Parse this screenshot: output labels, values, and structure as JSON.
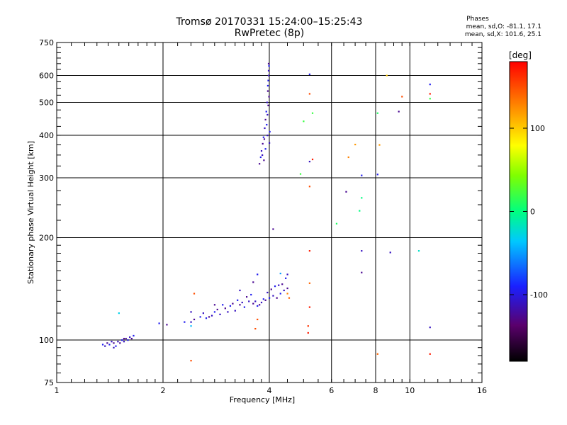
{
  "chart_data": {
    "type": "scatter",
    "title": "Tromsø 20170331 15:24:00–15:25:43",
    "subtitle": "RwPretec (8p)",
    "xlabel": "Frequency [MHz]",
    "ylabel": "Stationary phase Virtual Height [km]",
    "x_scale": "log",
    "y_scale": "log",
    "xlim": [
      1,
      16
    ],
    "ylim": [
      75,
      750
    ],
    "x_ticks": [
      "1",
      "2",
      "4",
      "6",
      "8",
      "10",
      "16"
    ],
    "y_ticks": [
      "75",
      "100",
      "200",
      "300",
      "400",
      "500",
      "600",
      "750"
    ],
    "grid": true,
    "colorbar": {
      "label": "[deg]",
      "range": [
        -180,
        180
      ],
      "ticks": [
        "100",
        "0",
        "-100"
      ]
    },
    "phases": {
      "heading": "Phases",
      "line_o": "mean, sd,O: -81.1, 17.1",
      "line_x": "mean, sd,X: 101.6, 25.1"
    },
    "series": [
      {
        "points": [
          [
            1.35,
            97
          ],
          [
            1.37,
            96
          ],
          [
            1.39,
            98
          ],
          [
            1.41,
            97
          ],
          [
            1.43,
            99
          ],
          [
            1.45,
            98
          ],
          [
            1.47,
            96
          ],
          [
            1.49,
            99
          ],
          [
            1.51,
            98
          ],
          [
            1.53,
            100
          ],
          [
            1.55,
            99
          ],
          [
            1.57,
            101
          ],
          [
            1.59,
            100
          ],
          [
            1.61,
            102
          ],
          [
            1.63,
            101
          ],
          [
            1.65,
            103
          ],
          [
            1.45,
            95
          ],
          [
            1.55,
            101
          ],
          [
            2.3,
            113
          ],
          [
            2.4,
            113
          ],
          [
            2.45,
            115
          ],
          [
            2.55,
            117
          ],
          [
            2.6,
            120
          ],
          [
            2.7,
            117
          ],
          [
            2.8,
            121
          ],
          [
            2.9,
            119
          ],
          [
            3.0,
            124
          ],
          [
            3.1,
            126
          ],
          [
            3.2,
            122
          ],
          [
            3.3,
            127
          ],
          [
            3.4,
            125
          ],
          [
            3.5,
            130
          ],
          [
            3.6,
            128
          ],
          [
            3.7,
            126
          ],
          [
            3.8,
            129
          ],
          [
            3.9,
            131
          ],
          [
            4.0,
            133
          ],
          [
            4.1,
            135
          ],
          [
            4.2,
            133
          ],
          [
            4.3,
            137
          ],
          [
            4.4,
            140
          ],
          [
            4.5,
            142
          ],
          [
            2.65,
            116
          ],
          [
            2.75,
            118
          ],
          [
            2.85,
            123
          ],
          [
            2.95,
            127
          ],
          [
            3.05,
            121
          ],
          [
            3.15,
            128
          ],
          [
            3.25,
            131
          ],
          [
            3.35,
            129
          ],
          [
            3.45,
            134
          ],
          [
            3.55,
            136
          ],
          [
            3.65,
            130
          ],
          [
            3.75,
            127
          ],
          [
            3.85,
            132
          ],
          [
            3.95,
            138
          ],
          [
            4.05,
            141
          ],
          [
            4.15,
            144
          ],
          [
            4.25,
            145
          ],
          [
            4.35,
            146
          ],
          [
            4.45,
            152
          ],
          [
            4.5,
            156
          ],
          [
            3.6,
            148
          ],
          [
            3.7,
            156
          ],
          [
            3.3,
            140
          ],
          [
            3.75,
            330
          ],
          [
            3.78,
            345
          ],
          [
            3.8,
            360
          ],
          [
            3.83,
            378
          ],
          [
            3.85,
            395
          ],
          [
            3.88,
            420
          ],
          [
            3.9,
            445
          ],
          [
            3.92,
            470
          ],
          [
            3.94,
            500
          ],
          [
            3.96,
            540
          ],
          [
            3.97,
            580
          ],
          [
            3.98,
            620
          ],
          [
            3.98,
            650
          ],
          [
            3.99,
            640
          ],
          [
            3.82,
            350
          ],
          [
            3.87,
            390
          ],
          [
            3.93,
            430
          ],
          [
            3.95,
            460
          ],
          [
            3.97,
            490
          ],
          [
            3.96,
            560
          ],
          [
            3.98,
            600
          ],
          [
            3.99,
            520
          ],
          [
            4.01,
            410
          ],
          [
            4.0,
            380
          ],
          [
            3.86,
            338
          ],
          [
            3.9,
            365
          ],
          [
            3.95,
            400
          ],
          [
            4.1,
            212
          ],
          [
            5.2,
            605
          ],
          [
            5.2,
            335
          ],
          [
            6.6,
            273
          ],
          [
            7.3,
            305
          ],
          [
            7.3,
            183
          ],
          [
            7.3,
            158
          ],
          [
            8.1,
            307
          ],
          [
            8.8,
            181
          ],
          [
            9.3,
            470
          ],
          [
            11.4,
            565
          ],
          [
            11.4,
            109
          ],
          [
            2.05,
            111
          ],
          [
            1.95,
            112
          ],
          [
            2.4,
            121
          ],
          [
            2.8,
            127
          ]
        ]
      }
    ],
    "colored_points": [
      [
        1.5,
        120,
        -30
      ],
      [
        2.4,
        110,
        -40
      ],
      [
        2.45,
        137,
        150
      ],
      [
        2.4,
        87,
        150
      ],
      [
        3.65,
        108,
        150
      ],
      [
        3.7,
        115,
        150
      ],
      [
        4.5,
        137,
        130
      ],
      [
        4.55,
        133,
        140
      ],
      [
        4.3,
        157,
        -50
      ],
      [
        5.15,
        110,
        160
      ],
      [
        5.15,
        105,
        170
      ],
      [
        5.2,
        125,
        170
      ],
      [
        5.2,
        147,
        140
      ],
      [
        5.2,
        183,
        170
      ],
      [
        5.2,
        283,
        150
      ],
      [
        5.2,
        530,
        150
      ],
      [
        5.3,
        465,
        20
      ],
      [
        5.3,
        340,
        170
      ],
      [
        5.0,
        440,
        20
      ],
      [
        4.9,
        308,
        20
      ],
      [
        6.2,
        220,
        10
      ],
      [
        6.7,
        345,
        130
      ],
      [
        7.0,
        376,
        120
      ],
      [
        7.2,
        240,
        0
      ],
      [
        7.3,
        262,
        0
      ],
      [
        8.1,
        91,
        140
      ],
      [
        8.2,
        375,
        120
      ],
      [
        8.1,
        465,
        10
      ],
      [
        8.6,
        600,
        100
      ],
      [
        9.5,
        520,
        150
      ],
      [
        10.6,
        183,
        -20
      ],
      [
        11.4,
        530,
        170
      ],
      [
        11.4,
        513,
        20
      ],
      [
        11.4,
        91,
        170
      ]
    ]
  }
}
